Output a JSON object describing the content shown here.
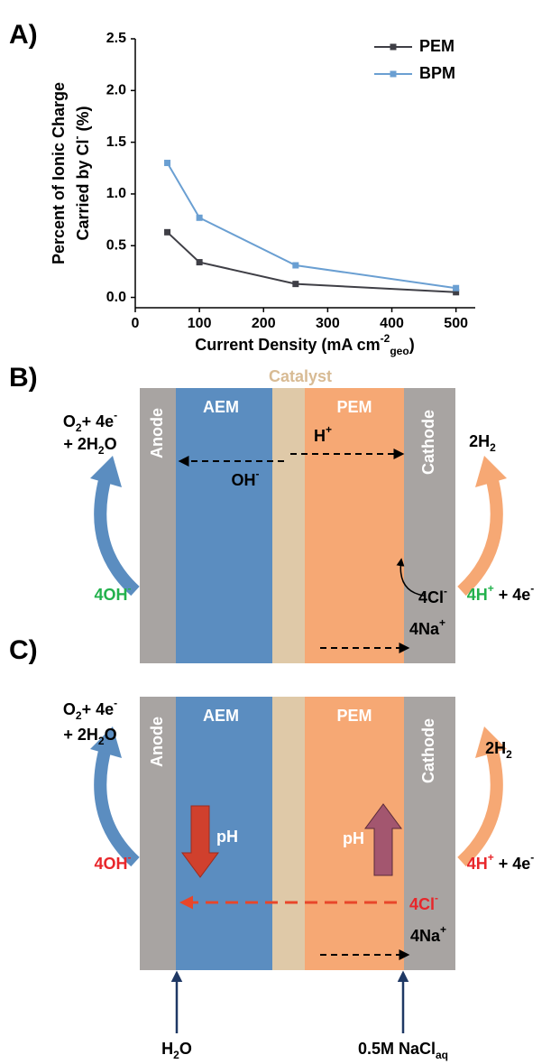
{
  "panels": {
    "a": "A)",
    "b": "B)",
    "c": "C)"
  },
  "chart_data": {
    "type": "line",
    "x": [
      50,
      100,
      250,
      500
    ],
    "series": [
      {
        "name": "PEM",
        "color": "#3f3f46",
        "values": [
          0.63,
          0.34,
          0.13,
          0.05
        ]
      },
      {
        "name": "BPM",
        "color": "#6a9fd2",
        "values": [
          1.3,
          0.77,
          0.31,
          0.09
        ]
      }
    ],
    "xlim": [
      0,
      530
    ],
    "xticks": [
      0,
      100,
      200,
      300,
      400,
      500
    ],
    "ylim": [
      -0.1,
      2.5
    ],
    "yticks": [
      {
        "value": 0,
        "label": "0.0"
      },
      {
        "value": 0.5,
        "label": "0.5"
      },
      {
        "value": 1,
        "label": "1.0"
      },
      {
        "value": 1.5,
        "label": "1.5"
      },
      {
        "value": 2,
        "label": "2.0"
      },
      {
        "value": 2.5,
        "label": "2.5"
      }
    ],
    "legend": "upper right",
    "xlabel": {
      "segments": [
        {
          "text": "Current Density (mA cm"
        },
        {
          "text": "-2",
          "pos": "sup"
        },
        {
          "text": "geo",
          "pos": "sub"
        },
        {
          "text": ")"
        }
      ]
    },
    "ylabel": {
      "lines": [
        {
          "segments": [
            {
              "text": "Percent of Ionic Charge"
            }
          ]
        },
        {
          "segments": [
            {
              "text": "Carried by Cl"
            },
            {
              "text": "-",
              "pos": "sup"
            },
            {
              "text": " (%)"
            }
          ]
        }
      ]
    }
  },
  "diagram_b": {
    "catalyst": "Catalyst",
    "layers": [
      "Anode",
      "AEM",
      "PEM",
      "Cathode"
    ],
    "labels": [
      {
        "color": "#000",
        "segments": [
          {
            "text": "O"
          },
          {
            "text": "2",
            "pos": "sub"
          },
          {
            "text": "+ 4e"
          },
          {
            "text": "-",
            "pos": "sup"
          }
        ]
      },
      {
        "color": "#000",
        "segments": [
          {
            "text": "+ 2H"
          },
          {
            "text": "2",
            "pos": "sub"
          },
          {
            "text": "O"
          }
        ]
      },
      {
        "color": "#000",
        "segments": [
          {
            "text": "H"
          },
          {
            "text": "+",
            "pos": "sup"
          }
        ]
      },
      {
        "color": "#000",
        "segments": [
          {
            "text": "OH"
          },
          {
            "text": "-",
            "pos": "sup"
          }
        ]
      },
      {
        "color": "#000",
        "segments": [
          {
            "text": "2H"
          },
          {
            "text": "2",
            "pos": "sub"
          }
        ]
      },
      {
        "color": "#22b14c",
        "segments": [
          {
            "text": "4OH"
          },
          {
            "text": "-",
            "pos": "sup"
          }
        ]
      },
      {
        "color": "#000",
        "segments": [
          {
            "text": "4Cl"
          },
          {
            "text": "-",
            "pos": "sup"
          }
        ]
      },
      {
        "color": "#000",
        "segments": [
          {
            "text": "4H",
            "color": "#22b14c"
          },
          {
            "text": "+",
            "pos": "sup",
            "color": "#22b14c"
          },
          {
            "text": " + 4e"
          },
          {
            "text": "-",
            "pos": "sup"
          }
        ]
      },
      {
        "color": "#000",
        "segments": [
          {
            "text": "4Na"
          },
          {
            "text": "+",
            "pos": "sup"
          }
        ]
      }
    ]
  },
  "diagram_c": {
    "layers": [
      "Anode",
      "AEM",
      "PEM",
      "Cathode"
    ],
    "labels": [
      {
        "color": "#000",
        "segments": [
          {
            "text": "O"
          },
          {
            "text": "2",
            "pos": "sub"
          },
          {
            "text": "+ 4e"
          },
          {
            "text": "-",
            "pos": "sup"
          }
        ]
      },
      {
        "color": "#000",
        "segments": [
          {
            "text": "+ 2H"
          },
          {
            "text": "2",
            "pos": "sub"
          },
          {
            "text": "O"
          }
        ]
      },
      {
        "color": "#000",
        "segments": [
          {
            "text": "2H"
          },
          {
            "text": "2",
            "pos": "sub"
          }
        ]
      },
      {
        "color": "#fff",
        "segments": [
          {
            "text": "pH"
          }
        ]
      },
      {
        "color": "#fff",
        "segments": [
          {
            "text": "pH"
          }
        ]
      },
      {
        "color": "#e8262a",
        "segments": [
          {
            "text": "4OH"
          },
          {
            "text": "-",
            "pos": "sup"
          }
        ]
      },
      {
        "color": "#000",
        "segments": [
          {
            "text": "4H",
            "color": "#e8262a"
          },
          {
            "text": "+",
            "pos": "sup",
            "color": "#e8262a"
          },
          {
            "text": " + 4e"
          },
          {
            "text": "-",
            "pos": "sup"
          }
        ]
      },
      {
        "color": "#e8262a",
        "segments": [
          {
            "text": "4Cl"
          },
          {
            "text": "-",
            "pos": "sup"
          }
        ]
      },
      {
        "color": "#000",
        "segments": [
          {
            "text": "4Na"
          },
          {
            "text": "+",
            "pos": "sup"
          }
        ]
      },
      {
        "color": "#000",
        "segments": [
          {
            "text": "H"
          },
          {
            "text": "2",
            "pos": "sub"
          },
          {
            "text": "O"
          }
        ]
      },
      {
        "color": "#000",
        "segments": [
          {
            "text": "0.5M NaCl"
          },
          {
            "text": "aq",
            "pos": "sub"
          }
        ]
      }
    ]
  }
}
